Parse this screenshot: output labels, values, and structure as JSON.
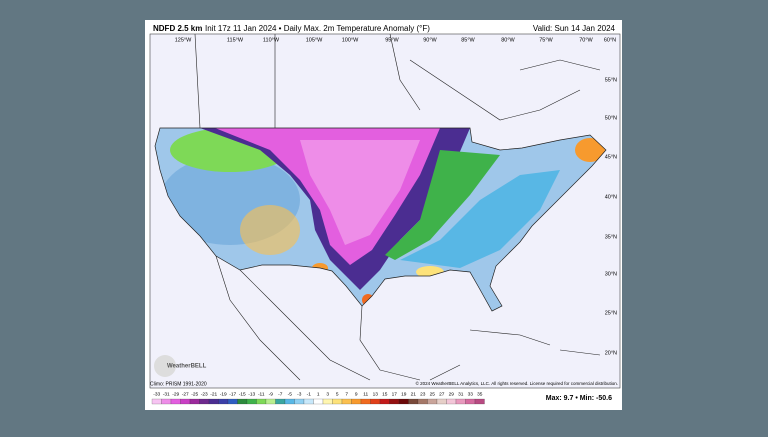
{
  "header": {
    "model": "NDFD 2.5 km",
    "title": "Init 17z 11 Jan 2024 • Daily Max. 2m Temperature Anomaly (°F)",
    "valid": "Valid: Sun 14 Jan 2024"
  },
  "map": {
    "lon_labels": [
      "125°W",
      "115°W",
      "110°W",
      "105°W",
      "100°W",
      "95°W",
      "90°W",
      "85°W",
      "80°W",
      "75°W",
      "70°W",
      "60°N"
    ],
    "lat_labels": [
      "55°N",
      "50°N",
      "45°N",
      "40°N",
      "35°N",
      "30°N",
      "25°N",
      "20°N"
    ],
    "logo": "WeatherBELL"
  },
  "footer": {
    "climo": "Climo: PRISM 1991-2020",
    "copyright": "© 2024 WeatherBELL Analytics, LLC. All rights reserved. License required for commercial distribution.",
    "stats": "Max: 9.7 • Min: -50.6"
  },
  "colorbar": {
    "ticks": [
      -33,
      -31,
      -29,
      -27,
      -25,
      -23,
      -21,
      -19,
      -17,
      -15,
      -13,
      -11,
      -9,
      -7,
      -5,
      -3,
      -1,
      1,
      3,
      5,
      7,
      9,
      11,
      13,
      15,
      17,
      19,
      21,
      23,
      25,
      27,
      29,
      31,
      33,
      35
    ],
    "colors": [
      "#f7c4f2",
      "#ee8de8",
      "#e35fdf",
      "#c93fc4",
      "#9c2a9c",
      "#6e2a8e",
      "#4b2d91",
      "#3b3fa8",
      "#2f5ec2",
      "#2c8a3c",
      "#3fb24a",
      "#7ed957",
      "#b9ef8f",
      "#3aa6a0",
      "#58b7e5",
      "#8fd0f2",
      "#c8e8fa",
      "#ffffff",
      "#fff6b0",
      "#fde27a",
      "#fbc04f",
      "#f79a2e",
      "#f06a1f",
      "#e0401a",
      "#c21a1a",
      "#941010",
      "#6b0808",
      "#7a4a3a",
      "#a57868",
      "#c9a49a",
      "#e6cfc8",
      "#f3c6d8",
      "#e899bd",
      "#d46a9e",
      "#b84a82"
    ]
  }
}
